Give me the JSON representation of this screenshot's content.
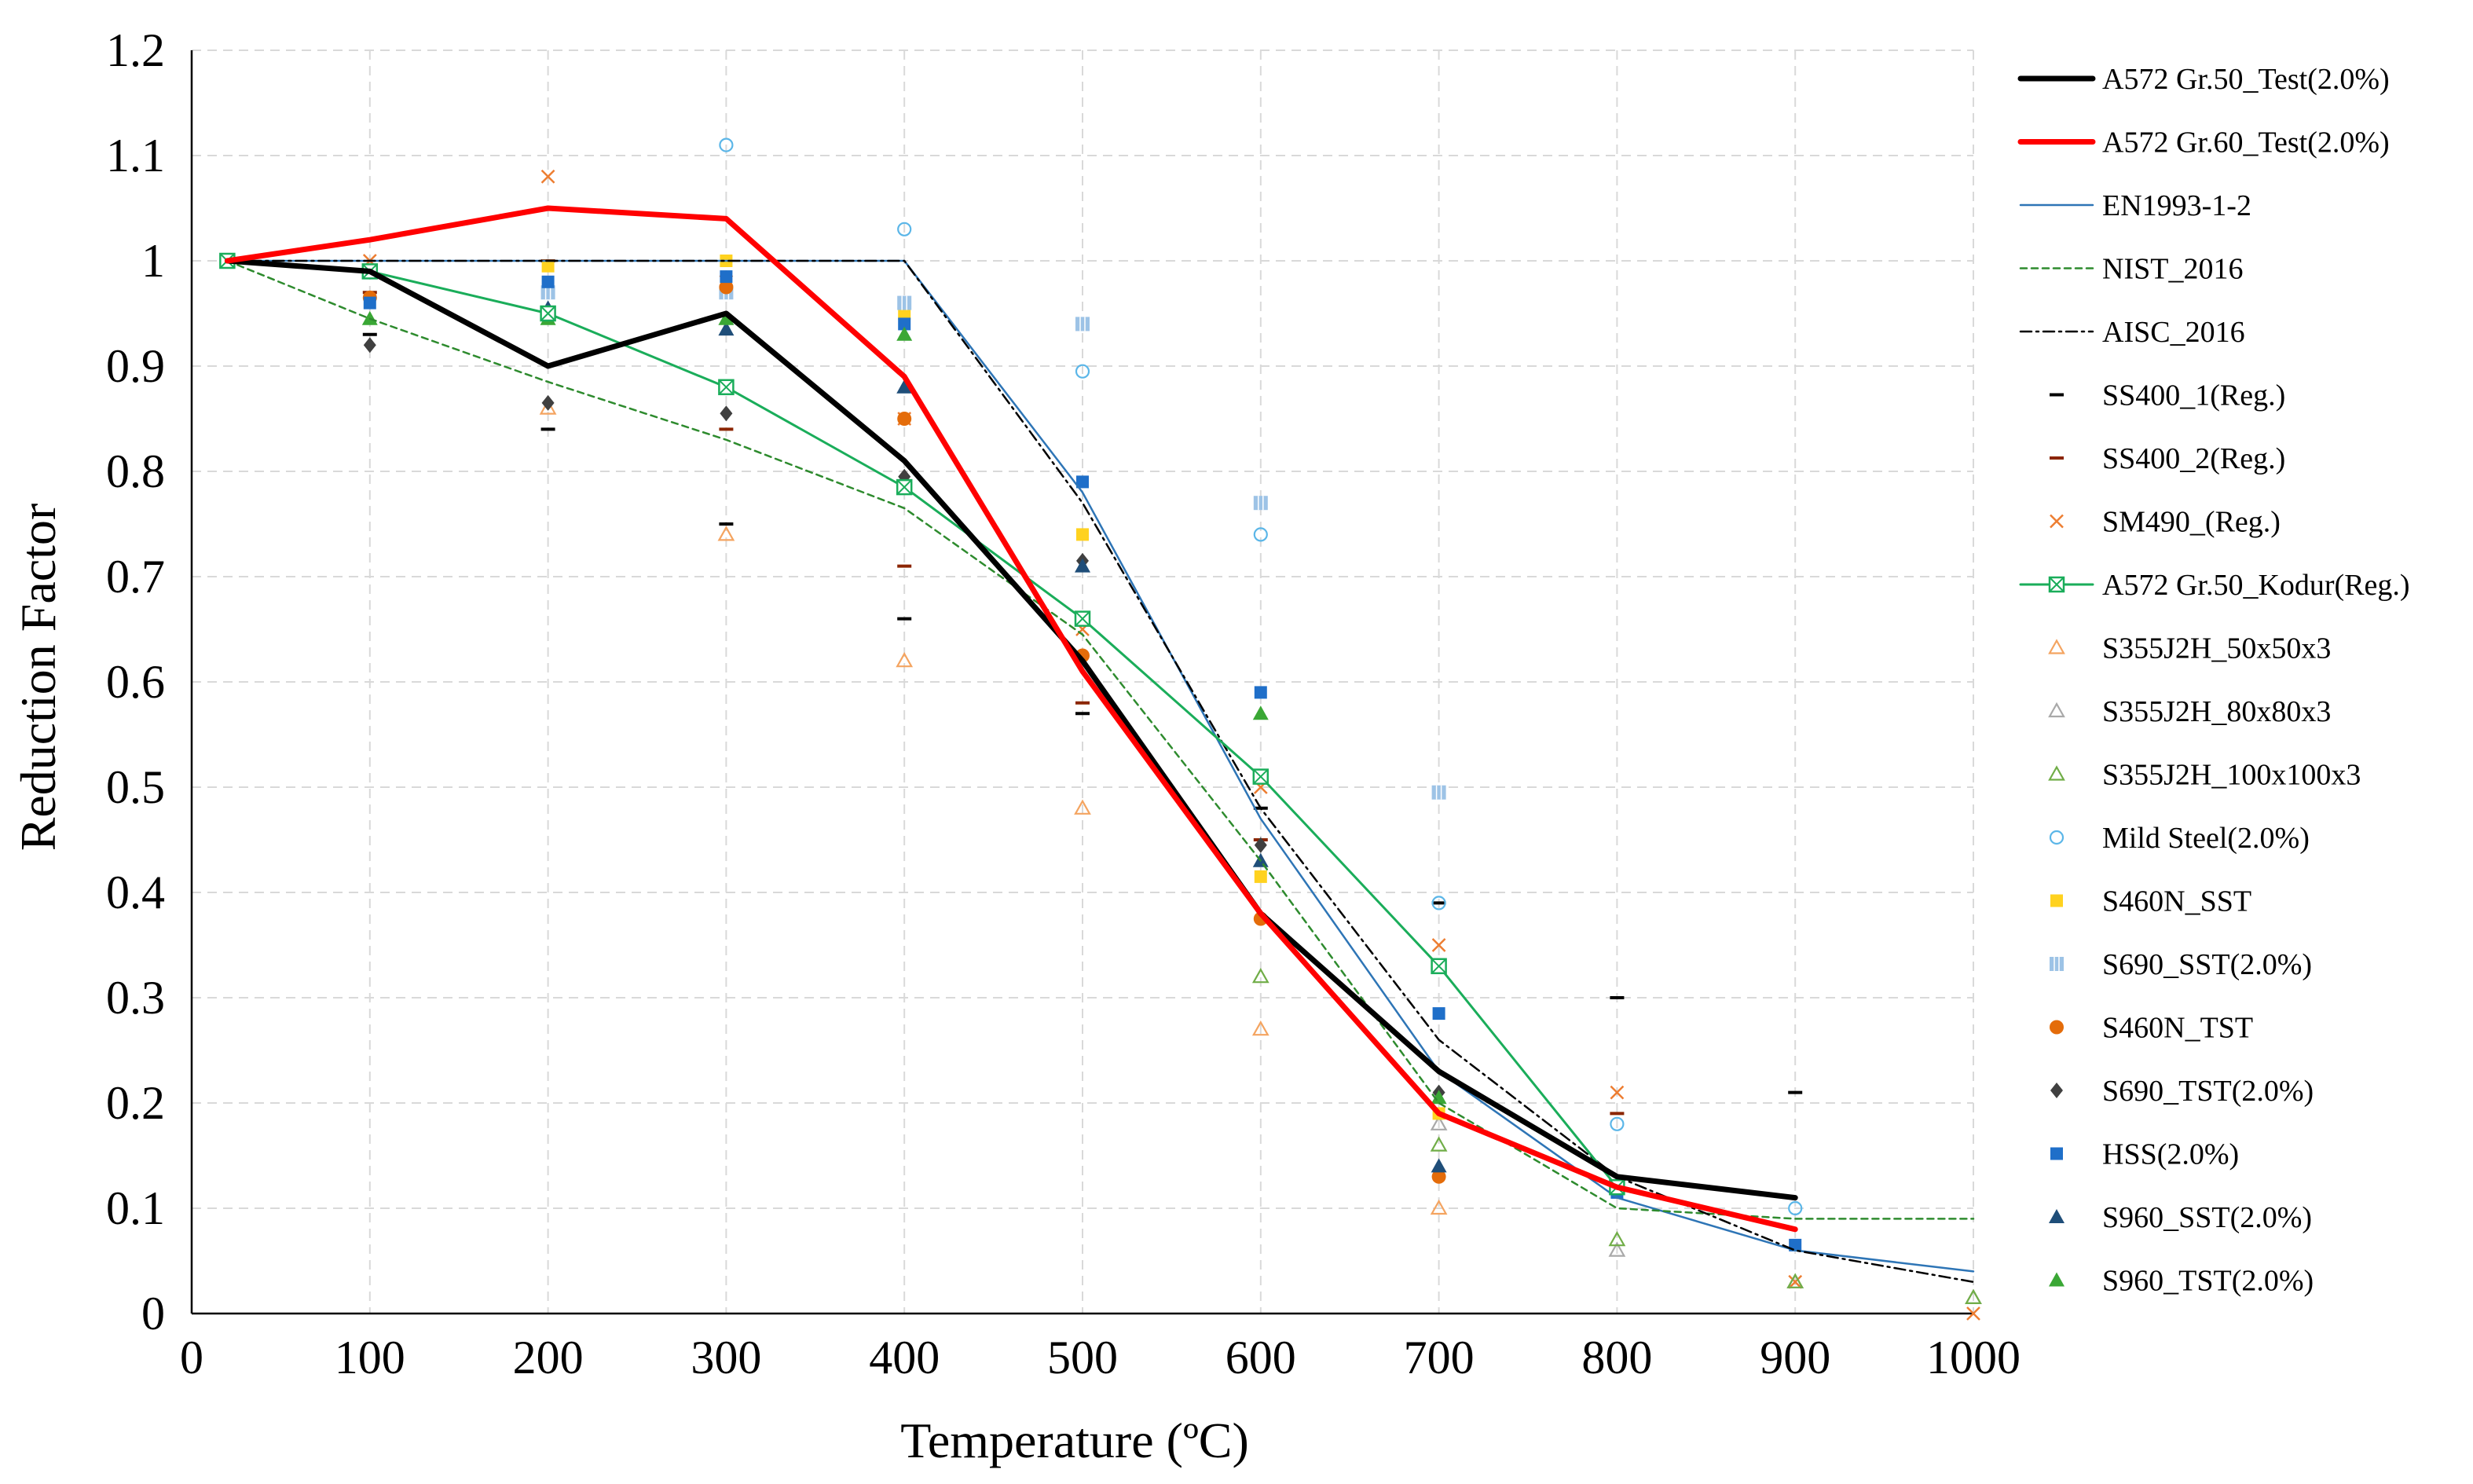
{
  "chart_data": {
    "type": "line",
    "xlabel": "Temperature (ºC)",
    "ylabel": "Reduction Factor",
    "xlim": [
      0,
      1000
    ],
    "ylim": [
      0,
      1.2
    ],
    "xticks": [
      0,
      100,
      200,
      300,
      400,
      500,
      600,
      700,
      800,
      900,
      1000
    ],
    "yticks": [
      0,
      0.1,
      0.2,
      0.3,
      0.4,
      0.5,
      0.6,
      0.7,
      0.8,
      0.9,
      1,
      1.1,
      1.2
    ],
    "xtick_labels": [
      "0",
      "100",
      "200",
      "300",
      "400",
      "500",
      "600",
      "700",
      "800",
      "900",
      "1000"
    ],
    "ytick_labels": [
      "0",
      "0.1",
      "0.2",
      "0.3",
      "0.4",
      "0.5",
      "0.6",
      "0.7",
      "0.8",
      "0.9",
      "1",
      "1.1",
      "1.2"
    ],
    "grid": true,
    "legend_position": "right",
    "series": [
      {
        "name": "A572 Gr.50_Test(2.0%)",
        "color": "#000000",
        "style": "line-thick",
        "points": [
          [
            20,
            1
          ],
          [
            100,
            0.99
          ],
          [
            200,
            0.9
          ],
          [
            300,
            0.95
          ],
          [
            400,
            0.81
          ],
          [
            500,
            0.62
          ],
          [
            600,
            0.38
          ],
          [
            700,
            0.23
          ],
          [
            800,
            0.13
          ],
          [
            900,
            0.11
          ]
        ]
      },
      {
        "name": "A572 Gr.60_Test(2.0%)",
        "color": "#ff0000",
        "style": "line-thick",
        "points": [
          [
            20,
            1
          ],
          [
            100,
            1.02
          ],
          [
            200,
            1.05
          ],
          [
            300,
            1.04
          ],
          [
            400,
            0.89
          ],
          [
            500,
            0.61
          ],
          [
            600,
            0.38
          ],
          [
            700,
            0.19
          ],
          [
            800,
            0.12
          ],
          [
            900,
            0.08
          ]
        ]
      },
      {
        "name": "EN1993-1-2",
        "color": "#2e75b6",
        "style": "line-thin",
        "points": [
          [
            20,
            1
          ],
          [
            400,
            1
          ],
          [
            500,
            0.78
          ],
          [
            600,
            0.47
          ],
          [
            700,
            0.23
          ],
          [
            800,
            0.11
          ],
          [
            900,
            0.06
          ],
          [
            1000,
            0.04
          ]
        ]
      },
      {
        "name": "NIST_2016",
        "color": "#2e8b2e",
        "style": "line-dashed",
        "points": [
          [
            20,
            1
          ],
          [
            100,
            0.945
          ],
          [
            200,
            0.885
          ],
          [
            300,
            0.83
          ],
          [
            400,
            0.765
          ],
          [
            500,
            0.645
          ],
          [
            600,
            0.43
          ],
          [
            700,
            0.2
          ],
          [
            800,
            0.1
          ],
          [
            900,
            0.09
          ],
          [
            1000,
            0.09
          ]
        ]
      },
      {
        "name": "AISC_2016",
        "color": "#000000",
        "style": "line-dashdot",
        "points": [
          [
            20,
            1
          ],
          [
            400,
            1
          ],
          [
            500,
            0.77
          ],
          [
            600,
            0.48
          ],
          [
            700,
            0.26
          ],
          [
            800,
            0.13
          ],
          [
            900,
            0.06
          ],
          [
            1000,
            0.03
          ]
        ]
      },
      {
        "name": "SS400_1(Reg.)",
        "color": "#000000",
        "style": "marker-dash",
        "points": [
          [
            100,
            0.93
          ],
          [
            200,
            0.84
          ],
          [
            300,
            0.75
          ],
          [
            400,
            0.66
          ],
          [
            500,
            0.57
          ],
          [
            600,
            0.48
          ],
          [
            700,
            0.39
          ],
          [
            800,
            0.3
          ],
          [
            900,
            0.21
          ]
        ]
      },
      {
        "name": "SS400_2(Reg.)",
        "color": "#8b2500",
        "style": "marker-dash",
        "points": [
          [
            100,
            0.97
          ],
          [
            200,
            1.0
          ],
          [
            300,
            0.84
          ],
          [
            400,
            0.71
          ],
          [
            500,
            0.58
          ],
          [
            600,
            0.45
          ],
          [
            700,
            0.33
          ],
          [
            800,
            0.19
          ]
        ]
      },
      {
        "name": "SM490_(Reg.)",
        "color": "#ed7d31",
        "style": "marker-x",
        "points": [
          [
            100,
            1.0
          ],
          [
            200,
            1.08
          ],
          [
            300,
            0.98
          ],
          [
            400,
            0.85
          ],
          [
            500,
            0.65
          ],
          [
            600,
            0.5
          ],
          [
            700,
            0.35
          ],
          [
            800,
            0.21
          ],
          [
            900,
            0.03
          ],
          [
            1000,
            0.0
          ]
        ]
      },
      {
        "name": "A572 Gr.50_Kodur(Reg.)",
        "color": "#1aad5a",
        "style": "line-boxx",
        "points": [
          [
            20,
            1
          ],
          [
            100,
            0.99
          ],
          [
            200,
            0.95
          ],
          [
            300,
            0.88
          ],
          [
            400,
            0.785
          ],
          [
            500,
            0.66
          ],
          [
            600,
            0.51
          ],
          [
            700,
            0.33
          ],
          [
            800,
            0.12
          ]
        ]
      },
      {
        "name": "S355J2H_50x50x3",
        "color": "#f4a460",
        "style": "marker-triangle-open",
        "points": [
          [
            200,
            0.86
          ],
          [
            300,
            0.74
          ],
          [
            400,
            0.62
          ],
          [
            500,
            0.48
          ],
          [
            600,
            0.27
          ],
          [
            700,
            0.1
          ]
        ]
      },
      {
        "name": "S355J2H_80x80x3",
        "color": "#a9a9a9",
        "style": "marker-triangle-open",
        "points": [
          [
            700,
            0.18
          ],
          [
            800,
            0.06
          ],
          [
            900,
            0.03
          ],
          [
            1000,
            0.015
          ]
        ]
      },
      {
        "name": "S355J2H_100x100x3",
        "color": "#70ad47",
        "style": "marker-triangle-open",
        "points": [
          [
            600,
            0.32
          ],
          [
            700,
            0.16
          ],
          [
            800,
            0.07
          ],
          [
            900,
            0.03
          ],
          [
            1000,
            0.015
          ]
        ]
      },
      {
        "name": "Mild Steel(2.0%)",
        "color": "#5bb6e8",
        "style": "marker-circle-open",
        "points": [
          [
            300,
            1.11
          ],
          [
            400,
            1.03
          ],
          [
            500,
            0.895
          ],
          [
            600,
            0.74
          ],
          [
            700,
            0.39
          ],
          [
            800,
            0.18
          ],
          [
            900,
            0.1
          ]
        ]
      },
      {
        "name": "S460N_SST",
        "color": "#ffd21f",
        "style": "marker-square",
        "points": [
          [
            200,
            0.995
          ],
          [
            300,
            1.0
          ],
          [
            400,
            0.95
          ],
          [
            500,
            0.74
          ],
          [
            600,
            0.415
          ],
          [
            700,
            0.19
          ]
        ]
      },
      {
        "name": "S690_SST(2.0%)",
        "color": "#9dc3e6",
        "style": "marker-square-grid",
        "points": [
          [
            100,
            0.99
          ],
          [
            200,
            0.97
          ],
          [
            300,
            0.97
          ],
          [
            400,
            0.96
          ],
          [
            500,
            0.94
          ],
          [
            600,
            0.77
          ],
          [
            700,
            0.495
          ]
        ]
      },
      {
        "name": "S460N_TST",
        "color": "#e46c0a",
        "style": "marker-circle",
        "points": [
          [
            100,
            0.965
          ],
          [
            300,
            0.975
          ],
          [
            400,
            0.85
          ],
          [
            500,
            0.625
          ],
          [
            600,
            0.375
          ],
          [
            700,
            0.13
          ]
        ]
      },
      {
        "name": "S690_TST(2.0%)",
        "color": "#404040",
        "style": "marker-diamond",
        "points": [
          [
            100,
            0.92
          ],
          [
            200,
            0.865
          ],
          [
            300,
            0.855
          ],
          [
            400,
            0.795
          ],
          [
            500,
            0.715
          ],
          [
            600,
            0.445
          ],
          [
            700,
            0.21
          ]
        ]
      },
      {
        "name": "HSS(2.0%)",
        "color": "#1f6fc9",
        "style": "marker-square",
        "points": [
          [
            100,
            0.96
          ],
          [
            200,
            0.98
          ],
          [
            300,
            0.985
          ],
          [
            400,
            0.94
          ],
          [
            500,
            0.79
          ],
          [
            600,
            0.59
          ],
          [
            700,
            0.285
          ],
          [
            800,
            0.115
          ],
          [
            900,
            0.065
          ]
        ]
      },
      {
        "name": "S960_SST(2.0%)",
        "color": "#1f4e79",
        "style": "marker-triangle",
        "points": [
          [
            200,
            0.955
          ],
          [
            300,
            0.935
          ],
          [
            400,
            0.88
          ],
          [
            500,
            0.71
          ],
          [
            600,
            0.43
          ],
          [
            700,
            0.14
          ]
        ]
      },
      {
        "name": "S960_TST(2.0%)",
        "color": "#3aa735",
        "style": "marker-triangle",
        "points": [
          [
            100,
            0.945
          ],
          [
            200,
            0.945
          ],
          [
            300,
            0.945
          ],
          [
            400,
            0.93
          ],
          [
            500,
            0.66
          ],
          [
            600,
            0.57
          ],
          [
            700,
            0.205
          ],
          [
            800,
            0.12
          ]
        ]
      }
    ]
  }
}
